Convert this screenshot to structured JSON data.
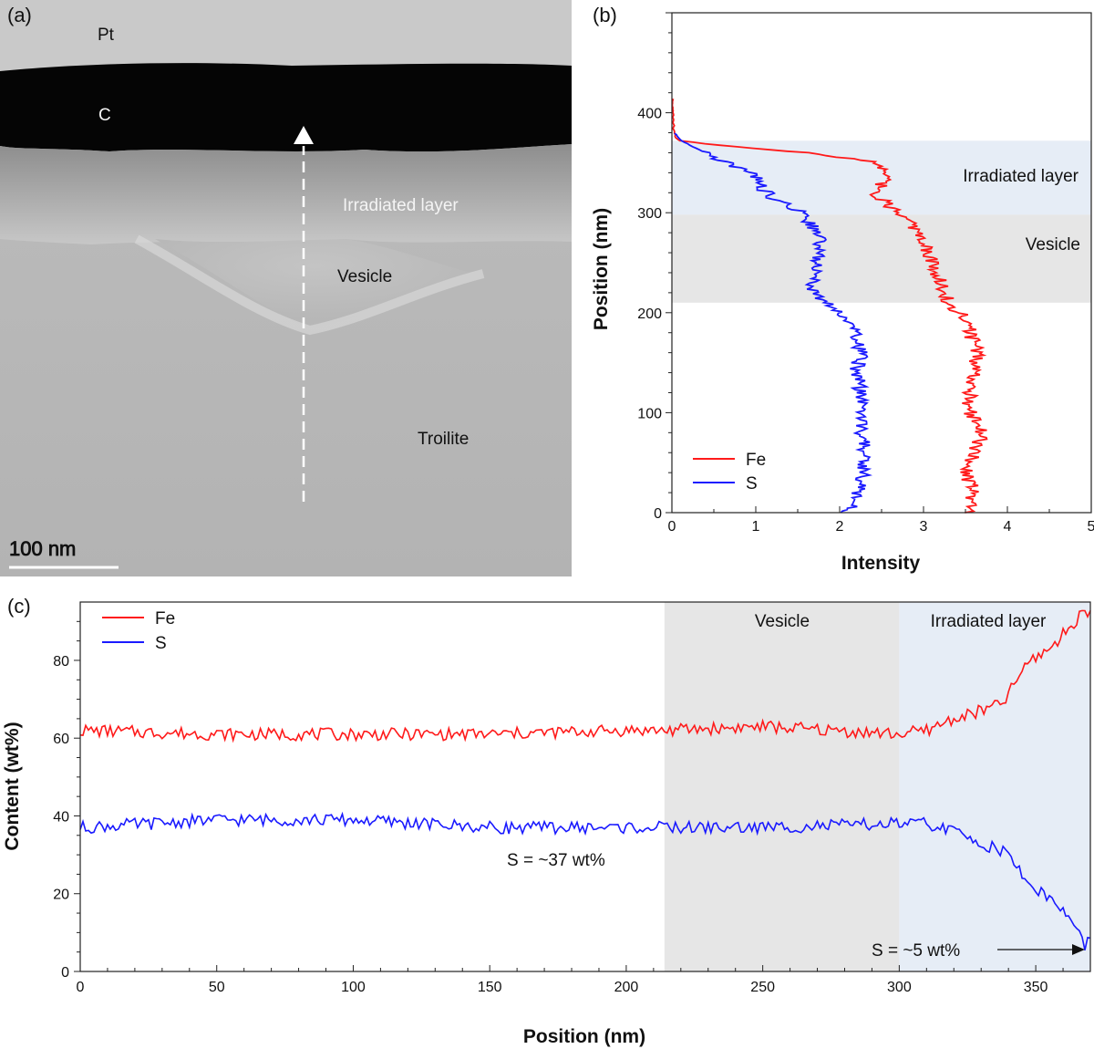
{
  "panel_a": {
    "label": "(a)",
    "layers": {
      "pt": "Pt",
      "c": "C",
      "irradiated": "Irradiated layer",
      "vesicle": "Vesicle",
      "troilite": "Troilite"
    },
    "scale_bar": "100 nm"
  },
  "chart_data": [
    {
      "id": "b",
      "type": "line",
      "label": "(b)",
      "xlabel": "Intensity",
      "ylabel": "Position (nm)",
      "xlim": [
        0,
        5
      ],
      "ylim": [
        0,
        500
      ],
      "xticks": [
        "0",
        "1",
        "2",
        "3",
        "4",
        "5"
      ],
      "yticks": [
        "0",
        "100",
        "200",
        "300",
        "400"
      ],
      "bands": [
        {
          "name": "Irradiated layer",
          "from": 298,
          "to": 372,
          "color": "#e6edf6"
        },
        {
          "name": "Vesicle",
          "from": 210,
          "to": 298,
          "color": "#e6e6e6"
        }
      ],
      "legend": [
        "Fe",
        "S"
      ],
      "series": [
        {
          "name": "Fe",
          "color": "#ff1a1a",
          "points": [
            [
              3.55,
              0
            ],
            [
              3.6,
              20
            ],
            [
              3.5,
              40
            ],
            [
              3.6,
              60
            ],
            [
              3.7,
              80
            ],
            [
              3.55,
              100
            ],
            [
              3.55,
              120
            ],
            [
              3.6,
              140
            ],
            [
              3.65,
              160
            ],
            [
              3.55,
              180
            ],
            [
              3.5,
              195
            ],
            [
              3.3,
              210
            ],
            [
              3.2,
              230
            ],
            [
              3.1,
              250
            ],
            [
              3.0,
              270
            ],
            [
              2.9,
              285
            ],
            [
              2.7,
              298
            ],
            [
              2.55,
              310
            ],
            [
              2.45,
              318
            ],
            [
              2.5,
              330
            ],
            [
              2.55,
              340
            ],
            [
              2.45,
              350
            ],
            [
              1.8,
              358
            ],
            [
              1.3,
              362
            ],
            [
              0.5,
              368
            ],
            [
              0.1,
              372
            ],
            [
              0.05,
              375
            ],
            [
              0.02,
              385
            ],
            [
              0.01,
              415
            ]
          ]
        },
        {
          "name": "S",
          "color": "#1a1aff",
          "points": [
            [
              2.1,
              0
            ],
            [
              2.2,
              20
            ],
            [
              2.3,
              40
            ],
            [
              2.3,
              60
            ],
            [
              2.25,
              80
            ],
            [
              2.25,
              100
            ],
            [
              2.25,
              120
            ],
            [
              2.2,
              140
            ],
            [
              2.25,
              160
            ],
            [
              2.2,
              180
            ],
            [
              2.1,
              195
            ],
            [
              1.85,
              210
            ],
            [
              1.65,
              225
            ],
            [
              1.7,
              240
            ],
            [
              1.75,
              260
            ],
            [
              1.75,
              280
            ],
            [
              1.6,
              295
            ],
            [
              1.45,
              305
            ],
            [
              1.2,
              315
            ],
            [
              1.05,
              325
            ],
            [
              1.0,
              338
            ],
            [
              0.75,
              345
            ],
            [
              0.6,
              352
            ],
            [
              0.45,
              358
            ],
            [
              0.25,
              366
            ],
            [
              0.1,
              373
            ],
            [
              0.03,
              380
            ]
          ]
        }
      ]
    },
    {
      "id": "c",
      "type": "line",
      "label": "(c)",
      "xlabel": "Position (nm)",
      "ylabel": "Content (wt%)",
      "xlim": [
        0,
        370
      ],
      "ylim": [
        0,
        95
      ],
      "xticks": [
        "0",
        "50",
        "100",
        "150",
        "200",
        "250",
        "300",
        "350"
      ],
      "yticks": [
        "0",
        "20",
        "40",
        "60",
        "80"
      ],
      "bands": [
        {
          "name": "Vesicle",
          "from": 214,
          "to": 300,
          "color": "#e6e6e6"
        },
        {
          "name": "Irradiated layer",
          "from": 300,
          "to": 370,
          "color": "#e6edf6"
        }
      ],
      "legend": [
        "Fe",
        "S"
      ],
      "annotations": [
        "S = ~37 wt%",
        "S = ~5 wt%"
      ],
      "series": [
        {
          "name": "Fe",
          "color": "#ff1a1a",
          "points": [
            [
              0,
              62
            ],
            [
              50,
              61
            ],
            [
              100,
              61
            ],
            [
              150,
              61
            ],
            [
              200,
              62
            ],
            [
              214,
              62
            ],
            [
              250,
              63
            ],
            [
              300,
              61
            ],
            [
              310,
              62
            ],
            [
              320,
              65
            ],
            [
              330,
              67
            ],
            [
              338,
              69
            ],
            [
              343,
              75
            ],
            [
              348,
              80
            ],
            [
              353,
              82
            ],
            [
              358,
              85
            ],
            [
              363,
              89
            ],
            [
              368,
              93
            ],
            [
              370,
              92
            ]
          ]
        },
        {
          "name": "S",
          "color": "#1a1aff",
          "points": [
            [
              0,
              37
            ],
            [
              50,
              39
            ],
            [
              100,
              39
            ],
            [
              150,
              37
            ],
            [
              200,
              37
            ],
            [
              214,
              37
            ],
            [
              250,
              37
            ],
            [
              300,
              38
            ],
            [
              310,
              38
            ],
            [
              320,
              36
            ],
            [
              330,
              33
            ],
            [
              338,
              31
            ],
            [
              343,
              27
            ],
            [
              348,
              22
            ],
            [
              353,
              20
            ],
            [
              358,
              17
            ],
            [
              363,
              13
            ],
            [
              368,
              7
            ],
            [
              370,
              8
            ]
          ]
        }
      ]
    }
  ]
}
